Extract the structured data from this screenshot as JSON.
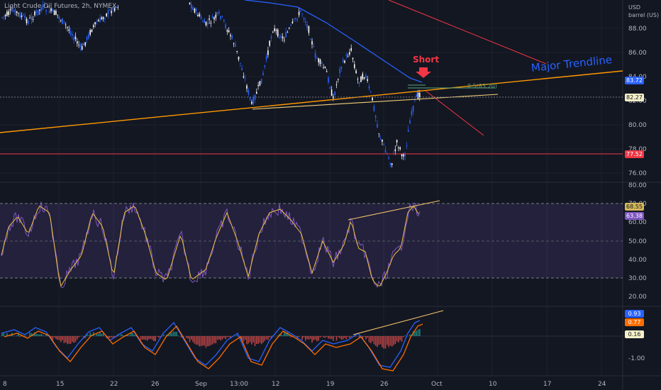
{
  "header": {
    "title": "Light Crude Oil Futures, 2h, NYMEX",
    "unit_line1": "USD",
    "unit_line2": "barrel (US)"
  },
  "annotations": {
    "short_label": "Short",
    "trendline_label": "Major Trendline",
    "fib_label": "0.5(83.20)"
  },
  "price_axis": {
    "ticks": [
      "88.00",
      "86.00",
      "84.00",
      "82.00",
      "80.00",
      "78.00",
      "76.00"
    ],
    "badges": [
      {
        "label": "83.72",
        "bg": "#2962ff",
        "fg": "#ffffff"
      },
      {
        "label": "82.27",
        "bg": "#f5f0c8",
        "fg": "#131722"
      },
      {
        "label": "77.52",
        "bg": "#f23645",
        "fg": "#ffffff"
      }
    ]
  },
  "rsi_axis": {
    "ticks": [
      "80.00",
      "70.00",
      "60.00",
      "50.00",
      "40.00",
      "30.00",
      "20.00"
    ],
    "badges": [
      {
        "label": "68.55",
        "bg": "#d4b85a",
        "fg": "#131722"
      },
      {
        "label": "63.38",
        "bg": "#7e57c2",
        "fg": "#ffffff"
      }
    ]
  },
  "macd_axis": {
    "ticks": [
      "-1.00"
    ],
    "badges": [
      {
        "label": "0.93",
        "bg": "#2962ff",
        "fg": "#ffffff"
      },
      {
        "label": "0.77",
        "bg": "#ff6d00",
        "fg": "#ffffff"
      },
      {
        "label": "0.16",
        "bg": "#f5f0c8",
        "fg": "#131722"
      }
    ]
  },
  "time_axis": {
    "ticks": [
      "8",
      "15",
      "22",
      "26",
      "Sep",
      "13:00",
      "12",
      "19",
      "26",
      "Oct",
      "10",
      "17",
      "24"
    ]
  },
  "colors": {
    "background": "#131722",
    "up_candle": "#ffffff",
    "down_candle": "#2962ff",
    "trendline_orange": "#ff9800",
    "red_line": "#f23645",
    "ma_blue": "#2962ff",
    "rsi_line": "#7e57c2",
    "rsi_ma": "#f0c040"
  }
}
